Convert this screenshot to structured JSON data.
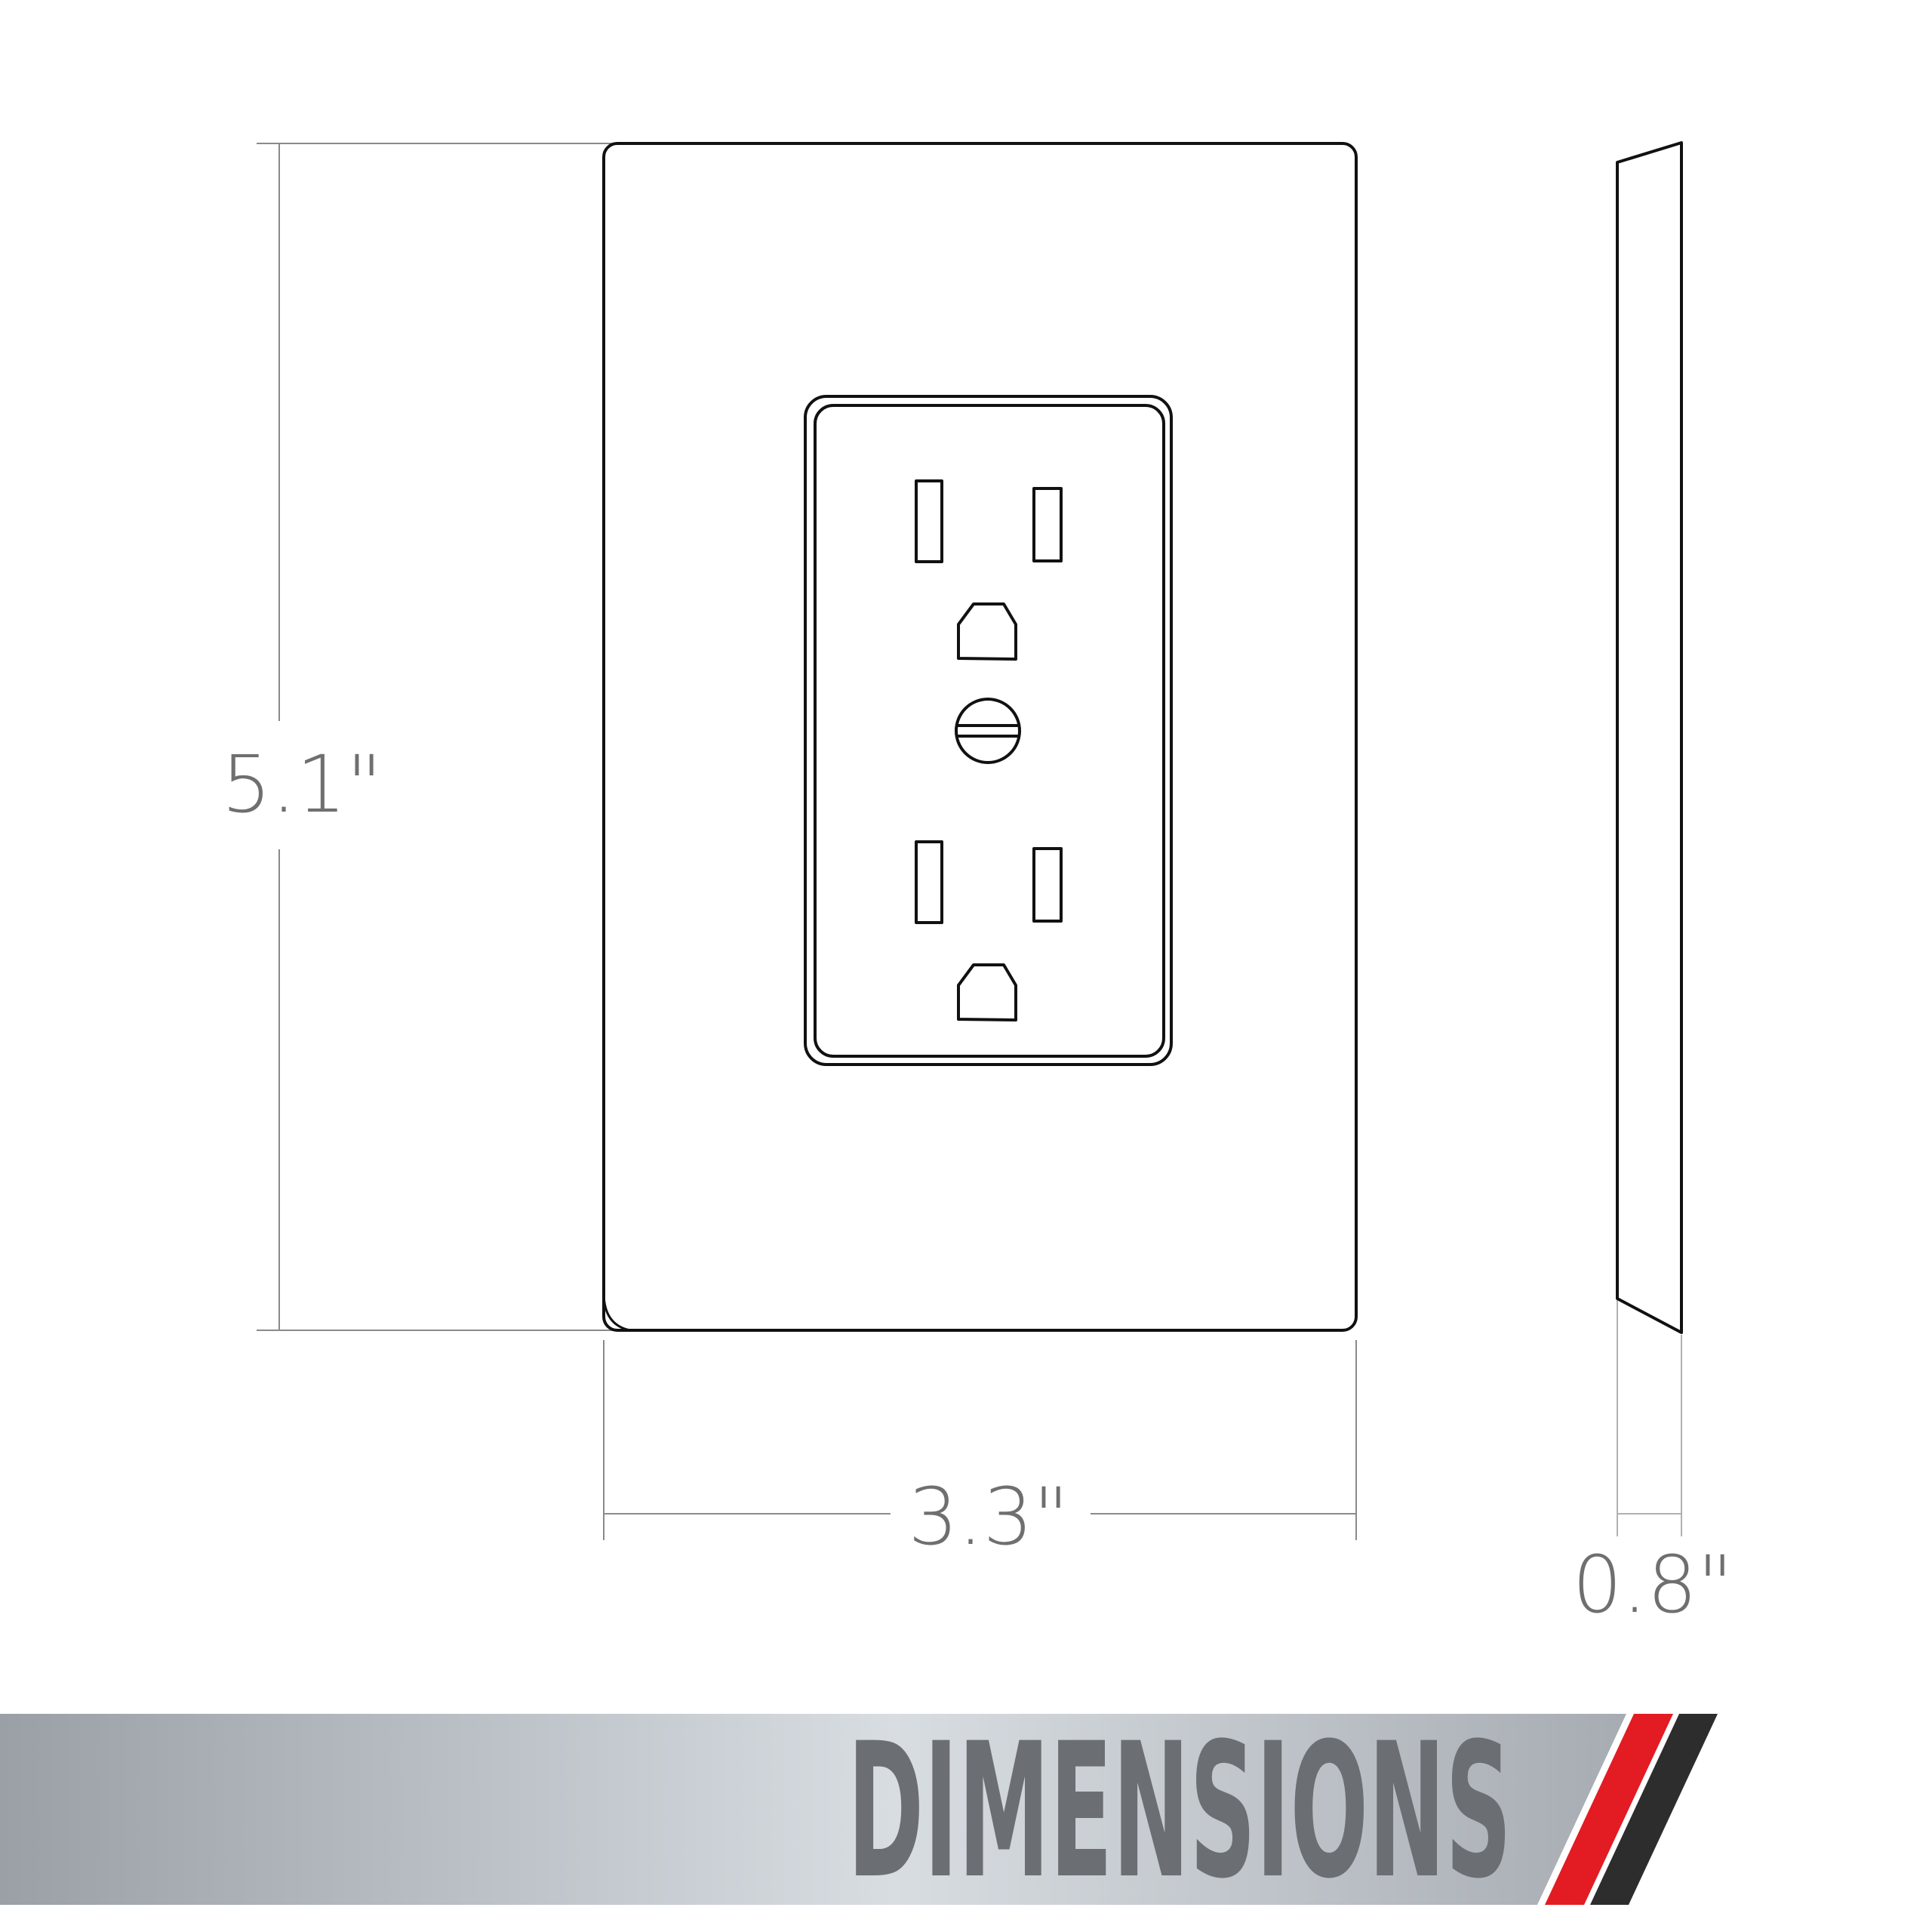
{
  "dimensions": {
    "height_label": "5.1\"",
    "width_label": "3.3\"",
    "depth_label": "0.8\""
  },
  "banner": {
    "title": "DIMENSIONS",
    "colors": {
      "gradient_start": "#9aa0a6",
      "gradient_mid": "#d8dde2",
      "gradient_end": "#a7acb2",
      "text": "#6b6f73",
      "stripe_red": "#e31b23",
      "stripe_dark": "#2d2d2d"
    }
  },
  "icons": {
    "front_view": "wall-plate-front-icon",
    "side_view": "wall-plate-side-profile-icon",
    "outlet": "duplex-outlet-icon",
    "screw": "screw-icon"
  }
}
